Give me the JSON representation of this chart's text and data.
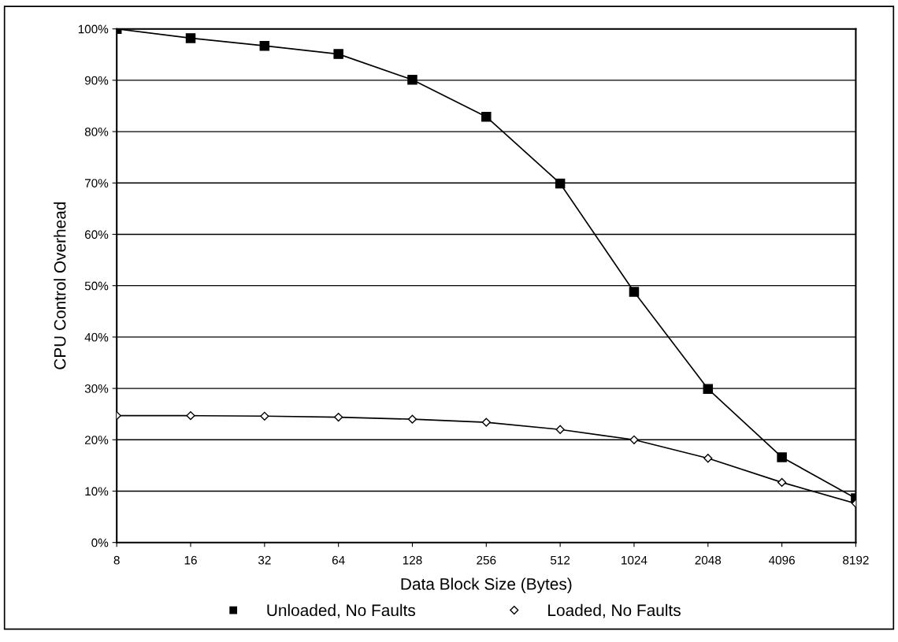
{
  "chart_data": {
    "type": "line",
    "xlabel": "Data Block Size (Bytes)",
    "ylabel": "CPU Control Overhead",
    "categories": [
      "8",
      "16",
      "32",
      "64",
      "128",
      "256",
      "512",
      "1024",
      "2048",
      "4096",
      "8192"
    ],
    "series": [
      {
        "name": "Unloaded, No Faults",
        "color": "#000000",
        "marker": "square",
        "values": [
          100,
          98.2,
          96.7,
          95.1,
          90.1,
          82.9,
          69.9,
          48.8,
          29.9,
          16.6,
          8.6
        ]
      },
      {
        "name": "Loaded, No Faults",
        "color": "#000000",
        "marker": "diamond",
        "values": [
          24.7,
          24.7,
          24.6,
          24.4,
          24.0,
          23.4,
          22.0,
          20.0,
          16.4,
          11.7,
          7.6
        ]
      }
    ],
    "ylim": [
      0,
      100
    ],
    "yticks": [
      {
        "value": 0,
        "label": "0%"
      },
      {
        "value": 10,
        "label": "10%"
      },
      {
        "value": 20,
        "label": "20%"
      },
      {
        "value": 30,
        "label": "30%"
      },
      {
        "value": 40,
        "label": "40%"
      },
      {
        "value": 50,
        "label": "50%"
      },
      {
        "value": 60,
        "label": "60%"
      },
      {
        "value": 70,
        "label": "70%"
      },
      {
        "value": 80,
        "label": "80%"
      },
      {
        "value": 90,
        "label": "90%"
      },
      {
        "value": 100,
        "label": "100%"
      }
    ],
    "grid": "y",
    "legend": "bottom",
    "line_style": "solid"
  }
}
